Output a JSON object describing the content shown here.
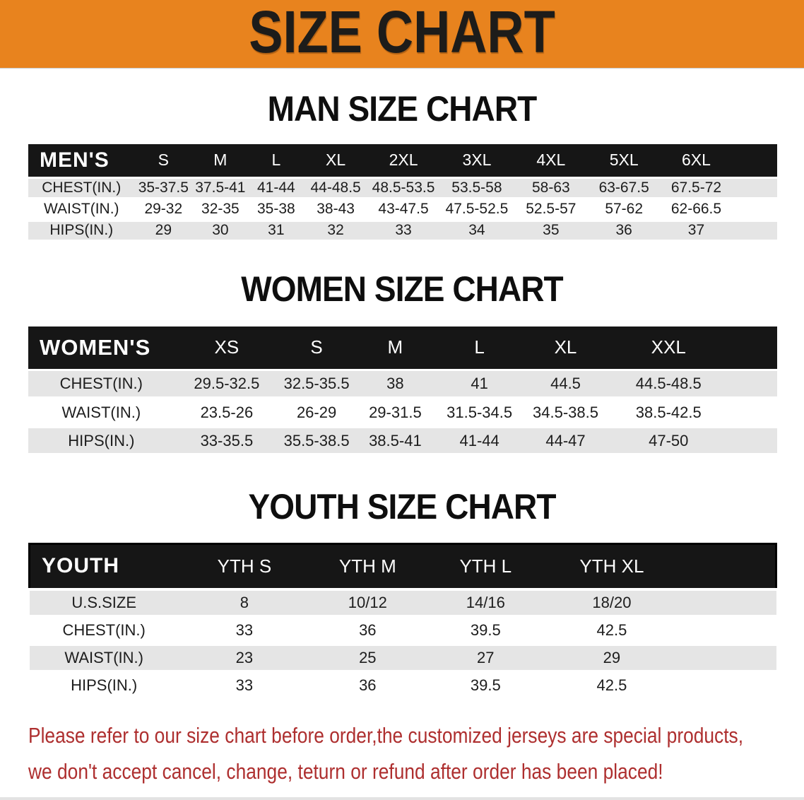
{
  "banner": {
    "title": "SIZE CHART",
    "bg_color": "#E8831E",
    "text_color": "#1D1C1A"
  },
  "sections": [
    {
      "title": "MAN SIZE CHART",
      "header_label": "MEN'S",
      "columns": [
        "S",
        "M",
        "L",
        "XL",
        "2XL",
        "3XL",
        "4XL",
        "5XL",
        "6XL"
      ],
      "rows": [
        {
          "label": "CHEST(IN.)",
          "values": [
            "35-37.5",
            "37.5-41",
            "41-44",
            "44-48.5",
            "48.5-53.5",
            "53.5-58",
            "58-63",
            "63-67.5",
            "67.5-72"
          ]
        },
        {
          "label": "WAIST(IN.)",
          "values": [
            "29-32",
            "32-35",
            "35-38",
            "38-43",
            "43-47.5",
            "47.5-52.5",
            "52.5-57",
            "57-62",
            "62-66.5"
          ]
        },
        {
          "label": "HIPS(IN.)",
          "values": [
            "29",
            "30",
            "31",
            "32",
            "33",
            "34",
            "35",
            "36",
            "37"
          ]
        }
      ]
    },
    {
      "title": "WOMEN SIZE CHART",
      "header_label": "WOMEN'S",
      "columns": [
        "XS",
        "S",
        "M",
        "L",
        "XL",
        "XXL"
      ],
      "rows": [
        {
          "label": "CHEST(IN.)",
          "values": [
            "29.5-32.5",
            "32.5-35.5",
            "38",
            "41",
            "44.5",
            "44.5-48.5"
          ]
        },
        {
          "label": "WAIST(IN.)",
          "values": [
            "23.5-26",
            "26-29",
            "29-31.5",
            "31.5-34.5",
            "34.5-38.5",
            "38.5-42.5"
          ]
        },
        {
          "label": "HIPS(IN.)",
          "values": [
            "33-35.5",
            "35.5-38.5",
            "38.5-41",
            "41-44",
            "44-47",
            "47-50"
          ]
        }
      ]
    },
    {
      "title": "YOUTH SIZE CHART",
      "header_label": "YOUTH",
      "columns": [
        "YTH S",
        "YTH M",
        "YTH L",
        "YTH XL"
      ],
      "rows": [
        {
          "label": "U.S.SIZE",
          "values": [
            "8",
            "10/12",
            "14/16",
            "18/20"
          ]
        },
        {
          "label": "CHEST(IN.)",
          "values": [
            "33",
            "36",
            "39.5",
            "42.5"
          ]
        },
        {
          "label": "WAIST(IN.)",
          "values": [
            "23",
            "25",
            "27",
            "29"
          ]
        },
        {
          "label": "HIPS(IN.)",
          "values": [
            "33",
            "36",
            "39.5",
            "42.5"
          ]
        }
      ]
    }
  ],
  "footer": {
    "lines": [
      "Please refer to our size chart before order,the customized jerseys are special products,",
      "we don't accept cancel, change, teturn or refund after order has been placed!"
    ],
    "text_color": "#AE2F2F"
  },
  "colors": {
    "table_header_bg": "#161616",
    "table_header_text": "#FFFFFF",
    "row_shaded": "#E5E5E5",
    "row_plain": "#FFFFFF"
  }
}
